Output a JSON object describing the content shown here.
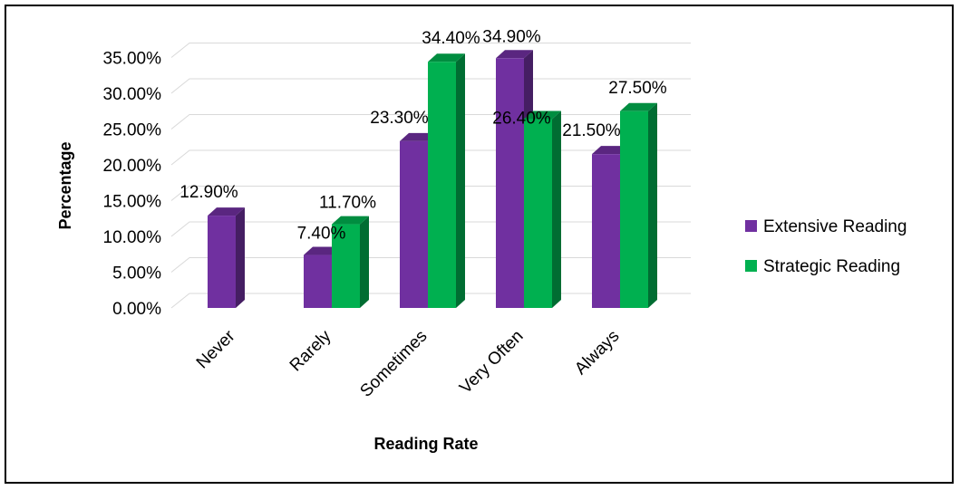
{
  "chart_data": {
    "type": "bar",
    "title": "",
    "xlabel": "Reading Rate",
    "ylabel": "Percentage",
    "categories": [
      "Never",
      "Rarely",
      "Sometimes",
      "Very Often",
      "Always"
    ],
    "series": [
      {
        "name": "Extensive Reading",
        "color": "#7030A0",
        "values": [
          12.9,
          7.4,
          23.3,
          34.9,
          21.5
        ],
        "labels": [
          "12.90%",
          "7.40%",
          "23.30%",
          "34.90%",
          "21.50%"
        ]
      },
      {
        "name": "Strategic Reading",
        "color": "#00B050",
        "values": [
          null,
          11.7,
          34.4,
          26.4,
          27.5
        ],
        "labels": [
          "",
          "11.70%",
          "34.40%",
          "26.40%",
          "27.50%"
        ]
      }
    ],
    "y_ticks": [
      "0.00%",
      "5.00%",
      "10.00%",
      "15.00%",
      "20.00%",
      "25.00%",
      "30.00%",
      "35.00%"
    ],
    "ylim": [
      0,
      35
    ],
    "grid": true,
    "legend_position": "right",
    "style": "3d-clustered-column"
  }
}
